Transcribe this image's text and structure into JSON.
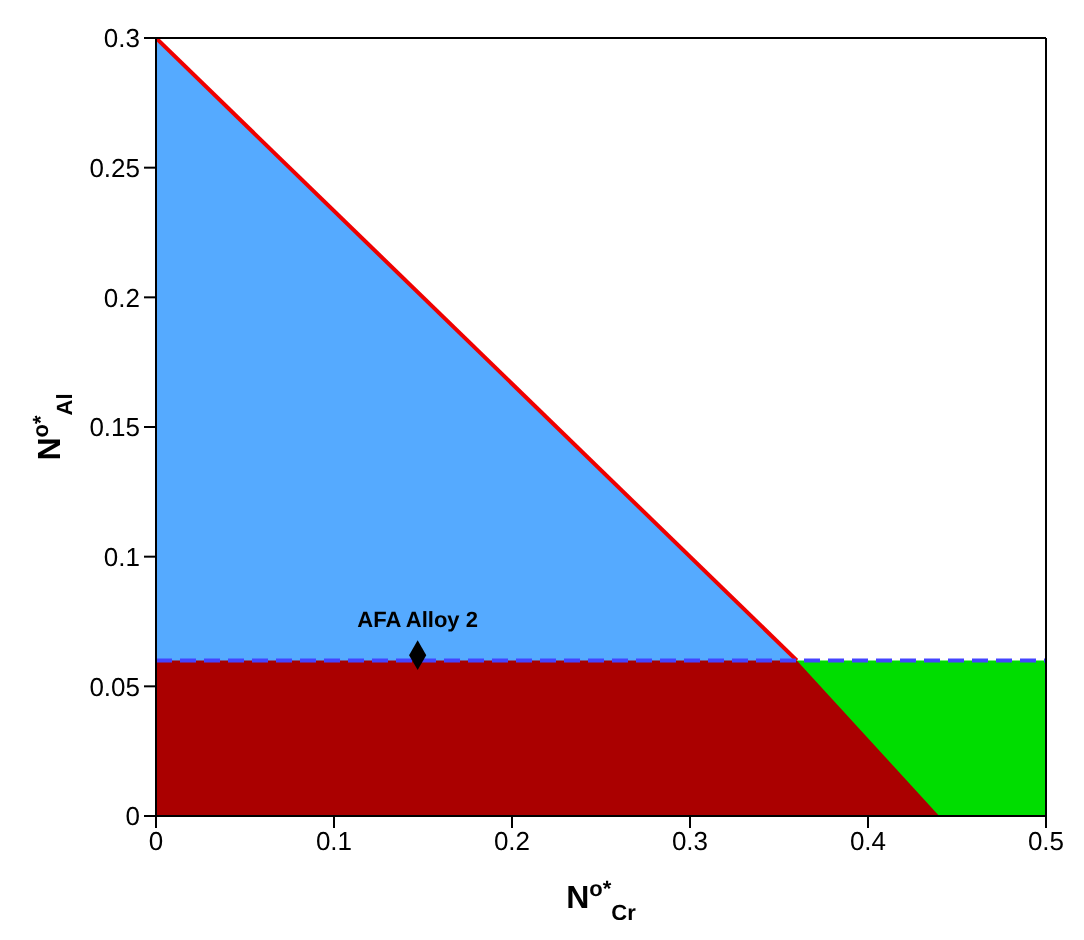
{
  "chart_data": {
    "type": "area",
    "xlabel": "N$^{o*}$$_{Cr}$",
    "ylabel": "N$^{o*}$$_{Al}$",
    "xlim": [
      0,
      0.5
    ],
    "xticks": [
      0,
      0.1,
      0.2,
      0.3,
      0.4,
      0.5
    ],
    "ylim": [
      0,
      0.3
    ],
    "yticks": [
      0,
      0.05,
      0.1,
      0.15,
      0.2,
      0.25,
      0.3
    ],
    "grid": false,
    "legend": false,
    "series": [
      {
        "color": "#55aaff",
        "x": [
          0,
          0.36
        ],
        "values": [
          0.3,
          0.06
        ]
      },
      {
        "color": "#00dd00",
        "x": [
          0.36,
          0.5
        ],
        "values": [
          0.06,
          0.06
        ]
      },
      {
        "color": "#aa0000",
        "x": [
          0,
          0.36,
          0.44
        ],
        "values": [
          0.06,
          0.06,
          0
        ]
      },
      {
        "type": "line",
        "color": "#ee0000",
        "line_style": "solid",
        "x": [
          0,
          0.36
        ],
        "values": [
          0.3,
          0.06
        ]
      },
      {
        "type": "line",
        "color": "#4444ff",
        "line_style": "dashed",
        "x": [
          0,
          0.5
        ],
        "values": [
          0.06,
          0.06
        ]
      },
      {
        "type": "scatter",
        "color": "#000000",
        "marker": "diamond",
        "x": [
          0.147
        ],
        "values": [
          0.062
        ]
      }
    ],
    "annotations": [
      {
        "text": "AFA Alloy 2",
        "x": 0.147,
        "y": 0.062
      }
    ]
  }
}
